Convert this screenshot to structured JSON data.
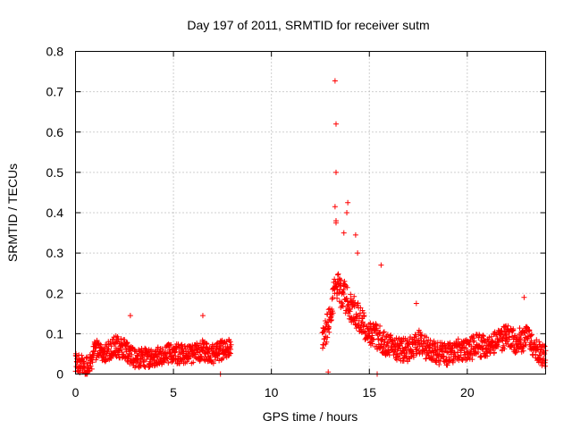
{
  "chart_data": {
    "type": "scatter",
    "title": "Day 197 of 2011, SRMTID for receiver sutm",
    "xlabel": "GPS time / hours",
    "ylabel": "SRMTID / TECUs",
    "xlim": [
      0,
      24
    ],
    "ylim": [
      0,
      0.8
    ],
    "xticks": [
      0,
      5,
      10,
      15,
      20
    ],
    "xtick_labels": [
      "0",
      "5",
      "10",
      "15",
      "20"
    ],
    "yticks": [
      0,
      0.1,
      0.2,
      0.3,
      0.4,
      0.5,
      0.6,
      0.7,
      0.8
    ],
    "ytick_labels": [
      "0",
      "0.1",
      "0.2",
      "0.3",
      "0.4",
      "0.5",
      "0.6",
      "0.7",
      "0.8"
    ],
    "grid": true,
    "marker": "+",
    "marker_color": "#ff0000",
    "series": [
      {
        "name": "SRMTID",
        "segments": [
          {
            "x_start": 0.0,
            "x_end": 7.95,
            "base_profile": [
              [
                0.0,
                0.03
              ],
              [
                0.5,
                0.02
              ],
              [
                0.8,
                0.03
              ],
              [
                1.0,
                0.06
              ],
              [
                1.5,
                0.05
              ],
              [
                2.0,
                0.07
              ],
              [
                2.5,
                0.06
              ],
              [
                3.0,
                0.04
              ],
              [
                3.5,
                0.04
              ],
              [
                4.0,
                0.04
              ],
              [
                4.5,
                0.05
              ],
              [
                5.0,
                0.05
              ],
              [
                5.5,
                0.05
              ],
              [
                6.0,
                0.05
              ],
              [
                6.5,
                0.06
              ],
              [
                7.0,
                0.05
              ],
              [
                7.5,
                0.06
              ],
              [
                7.95,
                0.07
              ]
            ],
            "spread": 0.035
          },
          {
            "x_start": 12.6,
            "x_end": 24.0,
            "base_profile": [
              [
                12.6,
                0.08
              ],
              [
                13.0,
                0.14
              ],
              [
                13.3,
                0.22
              ],
              [
                13.6,
                0.2
              ],
              [
                14.0,
                0.17
              ],
              [
                14.5,
                0.14
              ],
              [
                15.0,
                0.1
              ],
              [
                15.5,
                0.09
              ],
              [
                16.0,
                0.07
              ],
              [
                16.5,
                0.06
              ],
              [
                17.0,
                0.06
              ],
              [
                17.5,
                0.08
              ],
              [
                18.0,
                0.06
              ],
              [
                18.5,
                0.05
              ],
              [
                19.0,
                0.05
              ],
              [
                19.5,
                0.06
              ],
              [
                20.0,
                0.06
              ],
              [
                20.5,
                0.07
              ],
              [
                21.0,
                0.07
              ],
              [
                21.5,
                0.08
              ],
              [
                22.0,
                0.09
              ],
              [
                22.5,
                0.08
              ],
              [
                23.0,
                0.09
              ],
              [
                23.5,
                0.06
              ],
              [
                24.0,
                0.04
              ]
            ],
            "spread": 0.04
          }
        ],
        "notable_points": [
          {
            "x": 13.25,
            "y": 0.727
          },
          {
            "x": 13.3,
            "y": 0.62
          },
          {
            "x": 13.3,
            "y": 0.5
          },
          {
            "x": 13.25,
            "y": 0.415
          },
          {
            "x": 13.3,
            "y": 0.38
          },
          {
            "x": 13.3,
            "y": 0.375
          },
          {
            "x": 13.9,
            "y": 0.425
          },
          {
            "x": 13.85,
            "y": 0.4
          },
          {
            "x": 13.7,
            "y": 0.35
          },
          {
            "x": 14.3,
            "y": 0.345
          },
          {
            "x": 14.4,
            "y": 0.3
          },
          {
            "x": 15.6,
            "y": 0.27
          },
          {
            "x": 22.9,
            "y": 0.19
          },
          {
            "x": 2.8,
            "y": 0.145
          },
          {
            "x": 6.5,
            "y": 0.145
          },
          {
            "x": 17.4,
            "y": 0.175
          },
          {
            "x": 0.6,
            "y": 0.0
          },
          {
            "x": 12.9,
            "y": 0.005
          },
          {
            "x": 15.4,
            "y": 0.0
          },
          {
            "x": 7.4,
            "y": 0.0
          }
        ]
      }
    ]
  }
}
